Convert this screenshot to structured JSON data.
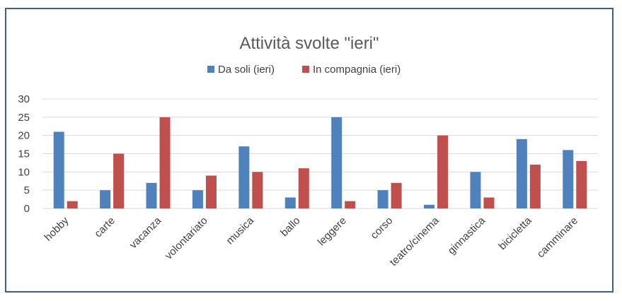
{
  "colors": {
    "series1": "#4f81bd",
    "series2": "#c0504d",
    "border": "#3e5f7d"
  },
  "chart_data": {
    "type": "bar",
    "title": "Attività svolte \"ieri\"",
    "categories": [
      "hobby",
      "carte",
      "vacanza",
      "volontariato",
      "musica",
      "ballo",
      "leggere",
      "corso",
      "teatro/cinema",
      "ginnastica",
      "bicicletta",
      "camminare"
    ],
    "series": [
      {
        "name": "Da soli (ieri)",
        "values": [
          21,
          5,
          7,
          5,
          17,
          3,
          25,
          5,
          1,
          10,
          19,
          16
        ]
      },
      {
        "name": "In compagnia (ieri)",
        "values": [
          2,
          15,
          25,
          9,
          10,
          11,
          2,
          7,
          20,
          3,
          12,
          13
        ]
      }
    ],
    "yticks": [
      0,
      5,
      10,
      15,
      20,
      25,
      30
    ],
    "ylim": [
      0,
      30
    ],
    "grid": true,
    "legend": "top"
  }
}
